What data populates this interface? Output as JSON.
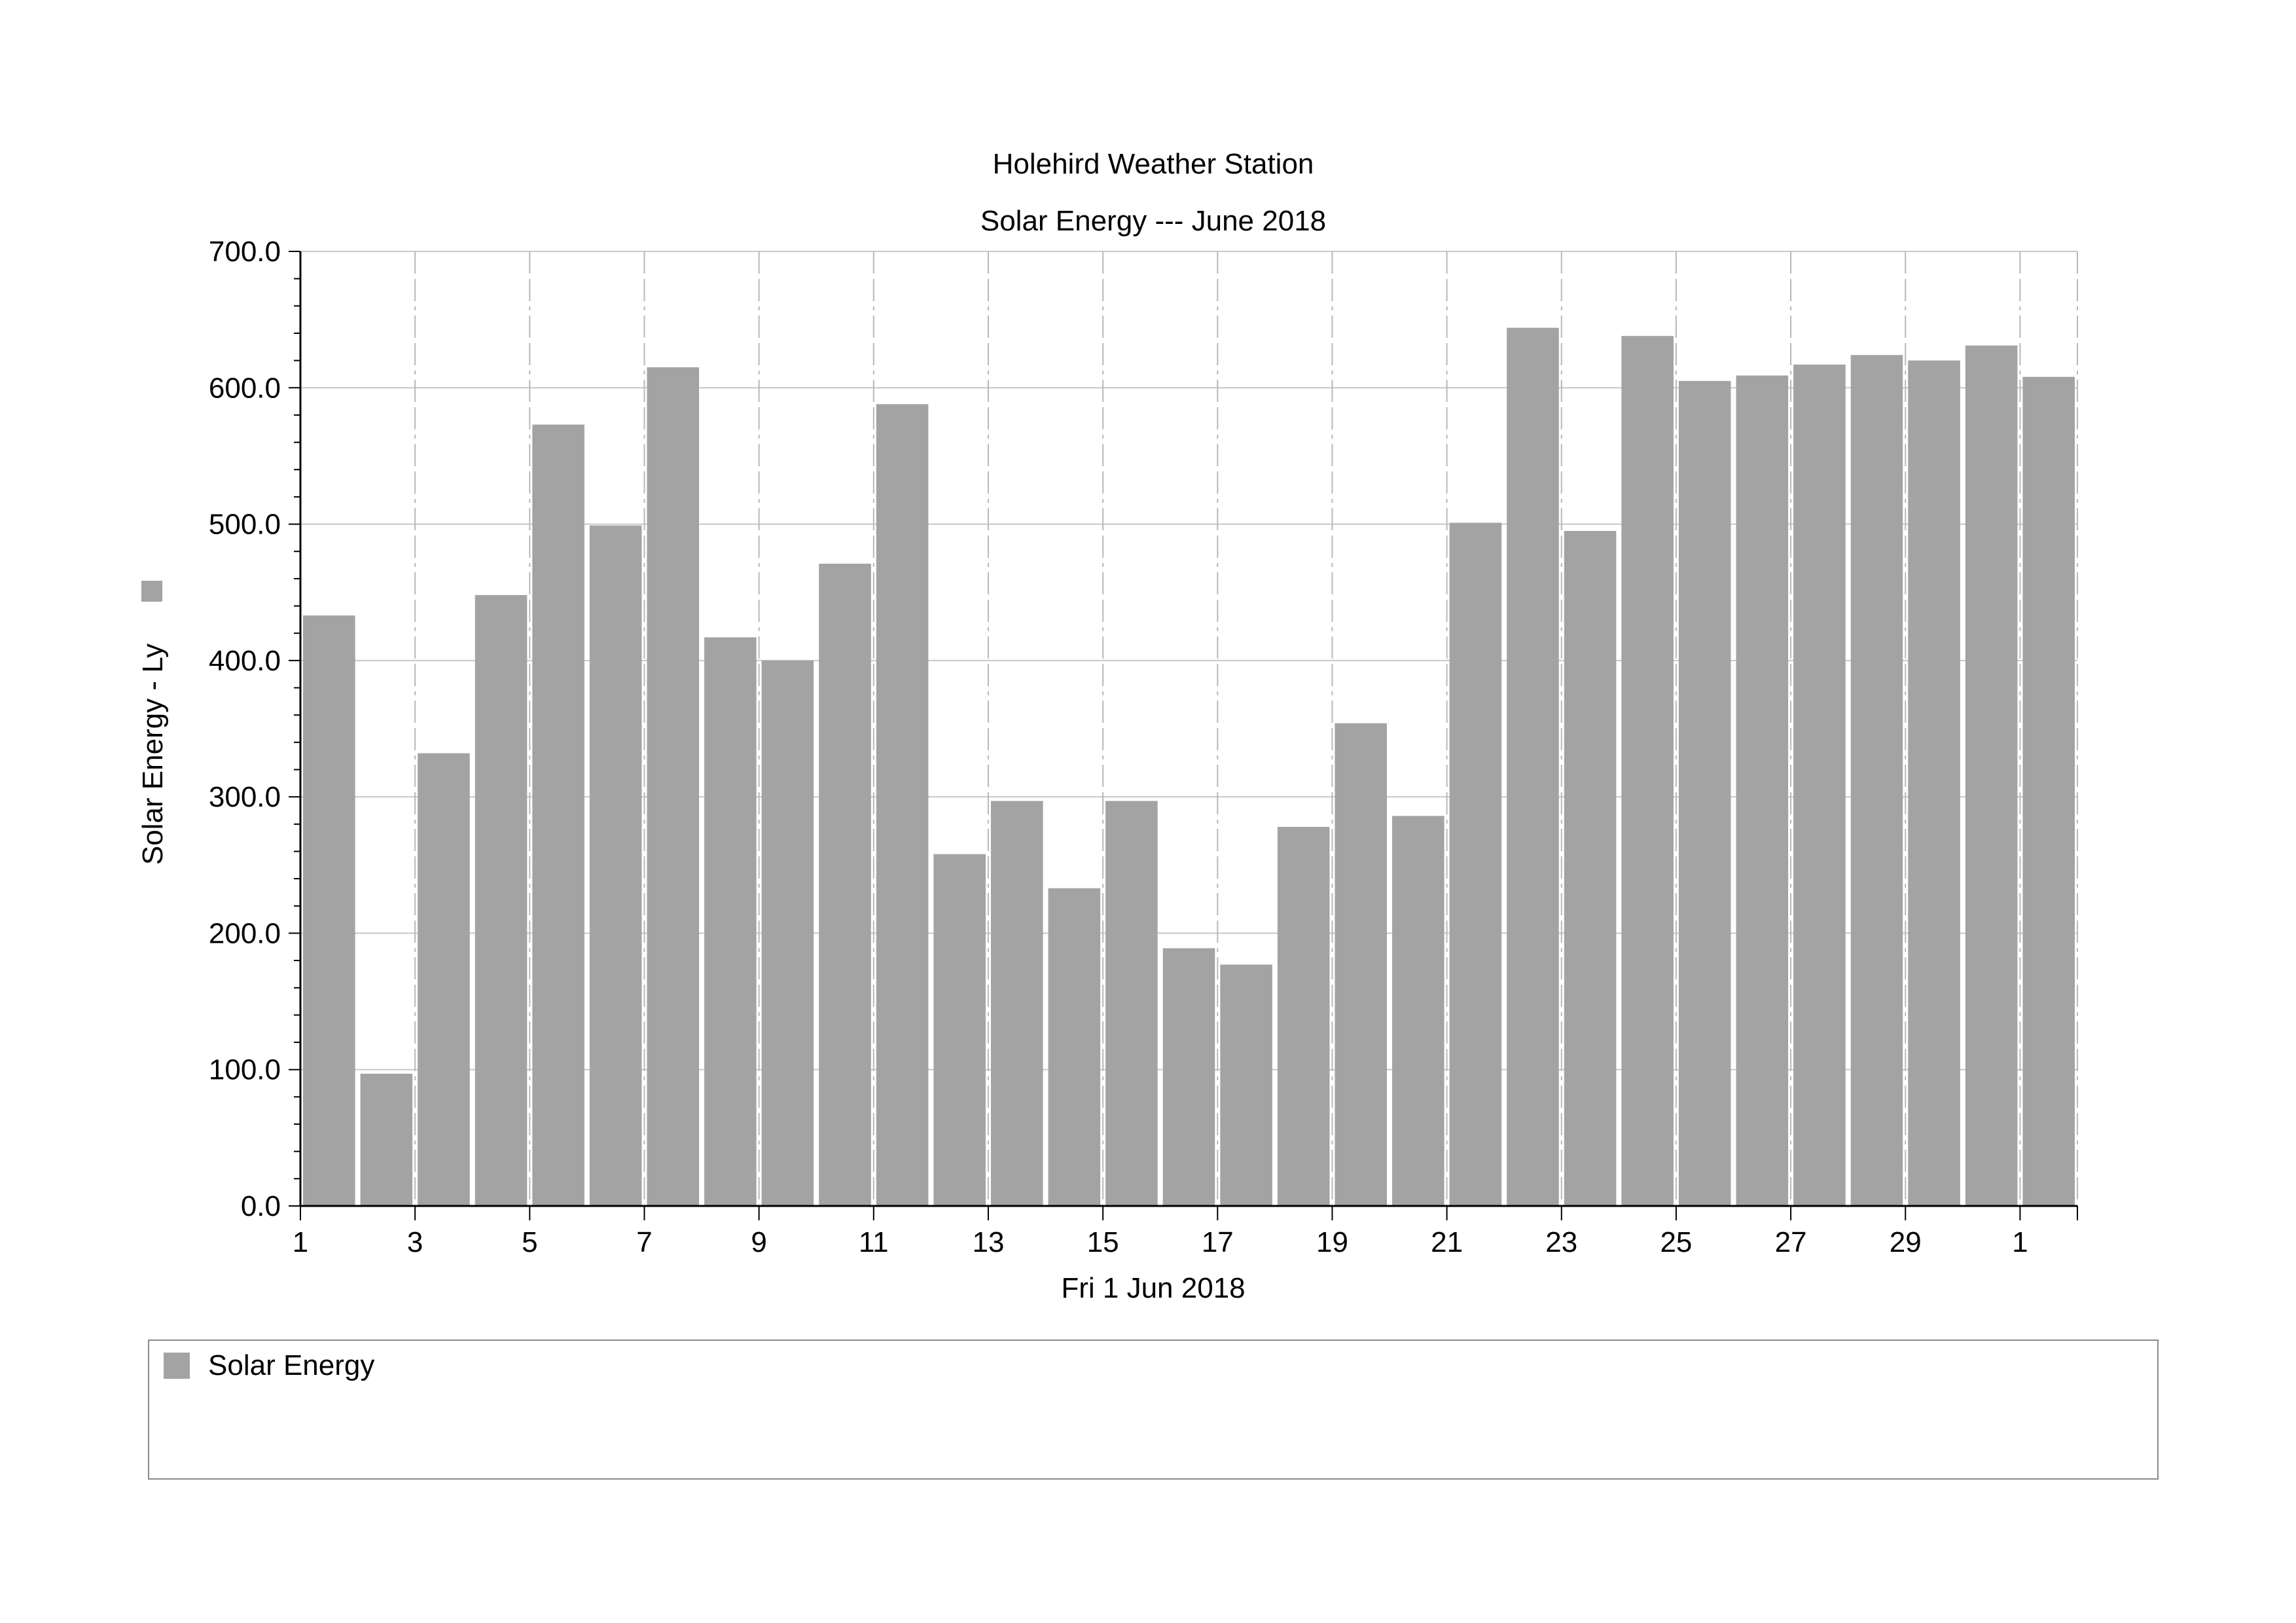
{
  "chart_data": {
    "type": "bar",
    "title": "Holehird Weather Station",
    "subtitle": "Solar Energy --- June 2018",
    "xlabel": "Fri 1 Jun 2018",
    "ylabel": "Solar Energy - Ly",
    "ylim": [
      0,
      700
    ],
    "yticks": [
      "0.0",
      "100.0",
      "200.0",
      "300.0",
      "400.0",
      "500.0",
      "600.0",
      "700.0"
    ],
    "categories": [
      "1",
      "2",
      "3",
      "4",
      "5",
      "6",
      "7",
      "8",
      "9",
      "10",
      "11",
      "12",
      "13",
      "14",
      "15",
      "16",
      "17",
      "18",
      "19",
      "20",
      "21",
      "22",
      "23",
      "24",
      "25",
      "26",
      "27",
      "28",
      "29",
      "30",
      "1"
    ],
    "xticks_labeled": [
      "1",
      "3",
      "5",
      "7",
      "9",
      "11",
      "13",
      "15",
      "17",
      "19",
      "21",
      "23",
      "25",
      "27",
      "29",
      "1"
    ],
    "series": [
      {
        "name": "Solar Energy",
        "color": "#a3a3a3",
        "values": [
          433,
          97,
          332,
          448,
          573,
          499,
          615,
          417,
          400,
          471,
          588,
          258,
          297,
          233,
          297,
          189,
          177,
          278,
          354,
          286,
          501,
          644,
          495,
          638,
          605,
          609,
          617,
          624,
          620,
          631,
          608
        ]
      }
    ],
    "grid": true,
    "legend": "bottom"
  }
}
